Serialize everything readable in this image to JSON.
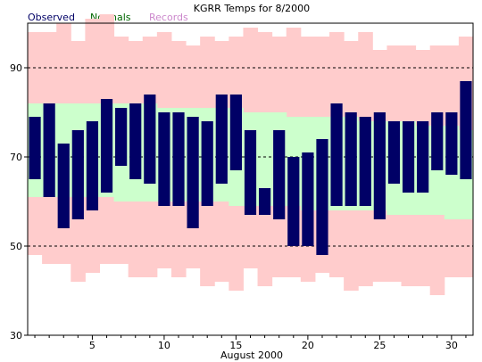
{
  "chart_data": {
    "type": "bar",
    "title": "KGRR Temps for 8/2000",
    "xlabel": "August 2000",
    "ylabel": "",
    "ylim": [
      30,
      100
    ],
    "xlim": [
      0.5,
      31.5
    ],
    "grid": "dashed lines at 50, 70, 90",
    "legend": [
      {
        "name": "Observed",
        "color": "#000066"
      },
      {
        "name": "Normals",
        "color": "#006600"
      },
      {
        "name": "Records",
        "color": "#cc88cc"
      }
    ],
    "y_ticks": [
      30,
      50,
      70,
      90
    ],
    "x_tick_labels": [
      5,
      10,
      15,
      20,
      25,
      30
    ],
    "days": [
      1,
      2,
      3,
      4,
      5,
      6,
      7,
      8,
      9,
      10,
      11,
      12,
      13,
      14,
      15,
      16,
      17,
      18,
      19,
      20,
      21,
      22,
      23,
      24,
      25,
      26,
      27,
      28,
      29,
      30,
      31
    ],
    "series": [
      {
        "name": "Records",
        "color": "#ffcccc",
        "high": [
          98,
          98,
          100,
          96,
          101,
          102,
          97,
          96,
          97,
          98,
          96,
          95,
          97,
          96,
          97,
          99,
          98,
          97,
          99,
          97,
          97,
          98,
          96,
          98,
          94,
          95,
          95,
          94,
          95,
          95,
          97
        ],
        "low": [
          48,
          46,
          46,
          42,
          44,
          46,
          46,
          43,
          43,
          45,
          43,
          45,
          41,
          42,
          40,
          45,
          41,
          43,
          43,
          42,
          44,
          43,
          40,
          41,
          42,
          42,
          41,
          41,
          39,
          43,
          43
        ]
      },
      {
        "name": "Normals",
        "color": "#ccffcc",
        "high": [
          82,
          82,
          82,
          82,
          82,
          82,
          82,
          82,
          82,
          81,
          81,
          81,
          81,
          81,
          81,
          80,
          80,
          80,
          79,
          79,
          79,
          79,
          79,
          78,
          78,
          78,
          78,
          77,
          77,
          77,
          76
        ],
        "low": [
          61,
          61,
          61,
          61,
          61,
          61,
          60,
          60,
          60,
          60,
          60,
          60,
          60,
          60,
          59,
          59,
          59,
          59,
          59,
          58,
          58,
          58,
          58,
          58,
          58,
          57,
          57,
          57,
          57,
          56,
          56
        ]
      },
      {
        "name": "Observed",
        "color": "#000066",
        "high": [
          79,
          82,
          73,
          76,
          78,
          83,
          81,
          82,
          84,
          80,
          80,
          79,
          78,
          84,
          84,
          76,
          63,
          76,
          70,
          71,
          74,
          82,
          80,
          79,
          80,
          78,
          78,
          78,
          80,
          80,
          87
        ],
        "low": [
          65,
          61,
          54,
          56,
          58,
          62,
          68,
          65,
          64,
          59,
          59,
          54,
          59,
          64,
          67,
          57,
          57,
          56,
          50,
          50,
          48,
          59,
          59,
          59,
          56,
          64,
          62,
          62,
          67,
          66,
          65
        ]
      }
    ]
  }
}
